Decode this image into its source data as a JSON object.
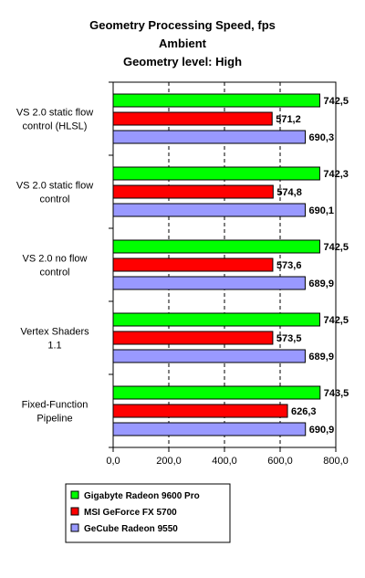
{
  "chart_data": {
    "type": "bar",
    "orientation": "horizontal",
    "title": [
      "Geometry Processing Speed, fps",
      "Ambient",
      "Geometry level: High"
    ],
    "categories": [
      [
        "VS 2.0 static flow",
        "control (HLSL)"
      ],
      [
        "VS 2.0 static flow",
        "control"
      ],
      [
        "VS 2.0 no flow",
        "control"
      ],
      [
        "Vertex Shaders",
        "1.1"
      ],
      [
        "Fixed-Function",
        "Pipeline"
      ]
    ],
    "series": [
      {
        "name": "Gigabyte Radeon 9600 Pro",
        "color": "#00ff00",
        "values": [
          742.5,
          742.3,
          742.5,
          742.5,
          743.5
        ],
        "labels": [
          "742,5",
          "742,3",
          "742,5",
          "742,5",
          "743,5"
        ]
      },
      {
        "name": "MSI GeForce FX 5700",
        "color": "#ff0000",
        "values": [
          571.2,
          574.8,
          573.6,
          573.5,
          626.3
        ],
        "labels": [
          "571,2",
          "574,8",
          "573,6",
          "573,5",
          "626,3"
        ]
      },
      {
        "name": "GeCube Radeon 9550",
        "color": "#9999ff",
        "values": [
          690.3,
          690.1,
          689.9,
          689.9,
          690.9
        ],
        "labels": [
          "690,3",
          "690,1",
          "689,9",
          "689,9",
          "690,9"
        ]
      }
    ],
    "xlim": [
      0,
      800
    ],
    "xticks": [
      0,
      200,
      400,
      600,
      800
    ],
    "xtick_labels": [
      "0,0",
      "200,0",
      "400,0",
      "600,0",
      "800,0"
    ],
    "grid": "vertical dashed",
    "legend_position": "bottom"
  }
}
